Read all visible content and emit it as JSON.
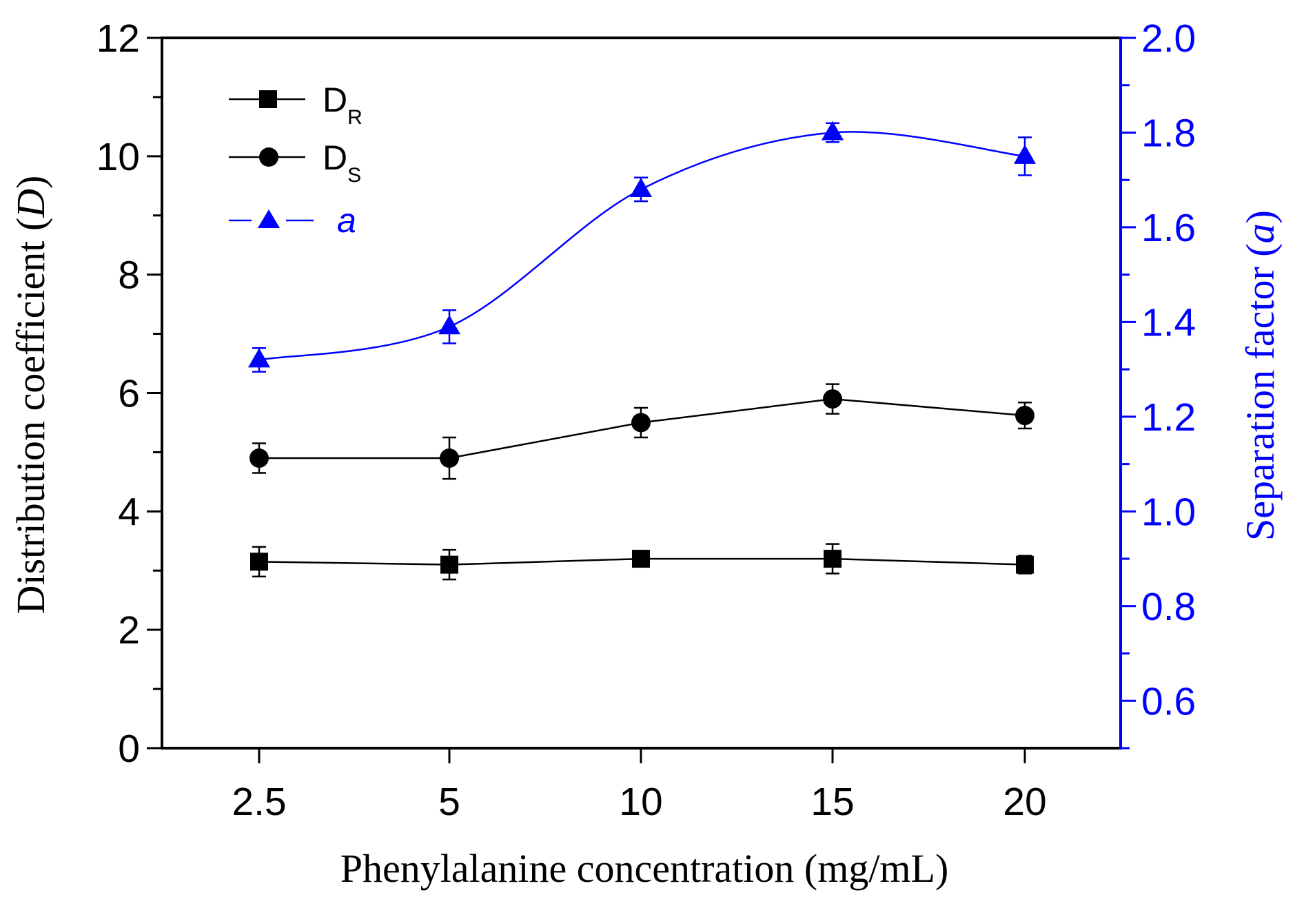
{
  "chart_data": {
    "type": "line",
    "xlabel": "Phenylalanine concentration (mg/mL)",
    "ylabel_left": {
      "prefix": "Distribution coefficient (",
      "symbol": "D",
      "suffix": ")"
    },
    "ylabel_right": {
      "prefix": "Separation factor (",
      "symbol": "a",
      "suffix": ")"
    },
    "categories": [
      "2.5",
      "5",
      "10",
      "15",
      "20"
    ],
    "y_left": {
      "min": 0,
      "max": 12,
      "ticks": [
        "0",
        "2",
        "4",
        "6",
        "8",
        "10",
        "12"
      ]
    },
    "y_right": {
      "min": 0.5,
      "max": 2.0,
      "ticks": [
        "0.6",
        "0.8",
        "1.0",
        "1.2",
        "1.4",
        "1.6",
        "1.8",
        "2.0"
      ]
    },
    "series": [
      {
        "name": "DR",
        "legend_main": "D",
        "legend_sub": "R",
        "axis": "left",
        "marker": "square",
        "color": "#000000",
        "values": [
          3.15,
          3.1,
          3.2,
          3.2,
          3.1
        ],
        "errors": [
          0.25,
          0.25,
          0.12,
          0.25,
          0.15
        ]
      },
      {
        "name": "DS",
        "legend_main": "D",
        "legend_sub": "S",
        "axis": "left",
        "marker": "circle",
        "color": "#000000",
        "values": [
          4.9,
          4.9,
          5.5,
          5.9,
          5.62
        ],
        "errors": [
          0.25,
          0.35,
          0.25,
          0.25,
          0.22
        ]
      },
      {
        "name": "a",
        "legend_main": "a",
        "legend_sub": "",
        "axis": "right",
        "marker": "triangle",
        "color": "#0000ff",
        "smooth": true,
        "values": [
          1.32,
          1.39,
          1.68,
          1.8,
          1.75
        ],
        "errors": [
          0.025,
          0.035,
          0.025,
          0.02,
          0.04
        ]
      }
    ]
  }
}
